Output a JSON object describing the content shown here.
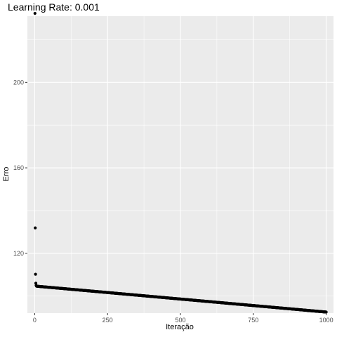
{
  "chart_data": {
    "type": "scatter",
    "title": "Learning Rate: 0.001",
    "xlabel": "Iteração",
    "ylabel": "Erro",
    "xlim": [
      -25,
      1025
    ],
    "ylim": [
      92,
      231
    ],
    "x_ticks": [
      0,
      250,
      500,
      750,
      1000
    ],
    "x_tick_labels": [
      "0",
      "250",
      "500",
      "750",
      "1000"
    ],
    "y_ticks": [
      120,
      160,
      200
    ],
    "y_tick_labels": [
      "120",
      "160",
      "200"
    ],
    "grid": true,
    "panel_background": "#EBEBEB",
    "grid_color": "#FFFFFF",
    "point_color": "#000000",
    "series": [
      {
        "early_points": [
          {
            "x": 1,
            "y": 232.3
          },
          {
            "x": 2,
            "y": 131.9
          },
          {
            "x": 3,
            "y": 110.2
          },
          {
            "x": 4,
            "y": 106.0
          },
          {
            "x": 5,
            "y": 105.0
          },
          {
            "x": 6,
            "y": 104.7
          }
        ],
        "trend": {
          "x_start": 7,
          "y_start": 104.6,
          "x_end": 1000,
          "y_end": 92.5,
          "step": 1
        }
      }
    ]
  }
}
